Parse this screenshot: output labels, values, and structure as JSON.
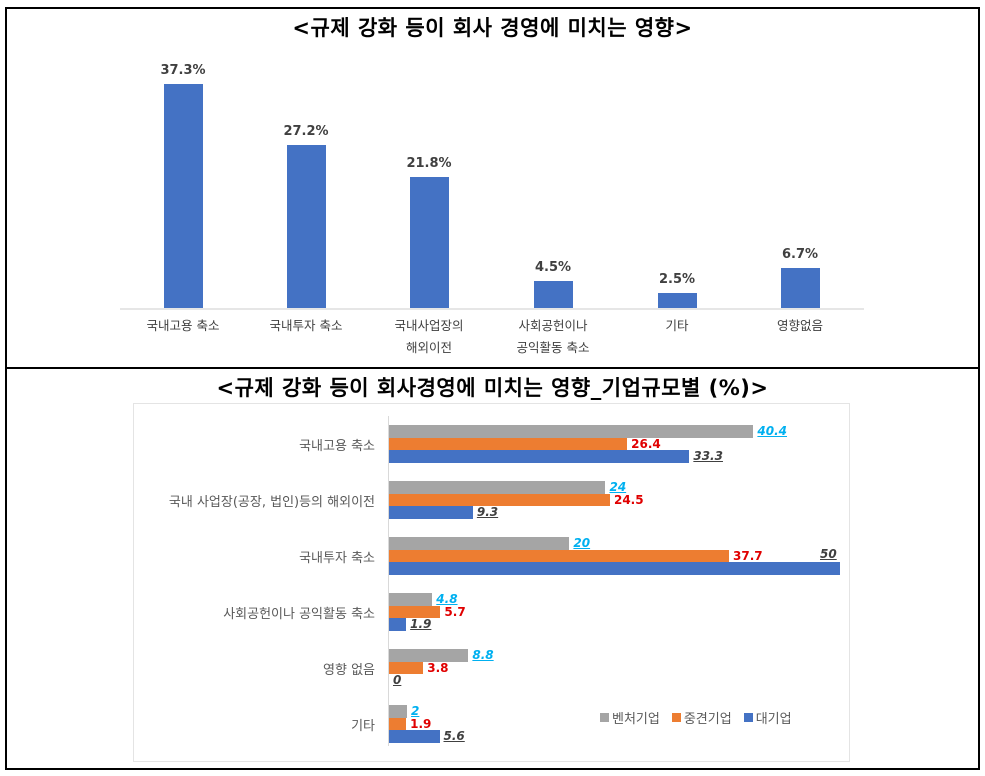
{
  "titles": {
    "top": "<규제 강화 등이 회사 경영에 미치는 영향>",
    "bottom": "<규제 강화 등이 회사경영에 미치는 영향_기업규모별 (%)>"
  },
  "colors": {
    "bar_blue": "#4472c4",
    "venture_gray": "#a5a5a5",
    "midsize_orange": "#ed7d31",
    "large_blue": "#4472c4",
    "venture_label": "#00b0f0",
    "midsize_label": "#e00000",
    "large_label": "#404040"
  },
  "top_chart": {
    "labels": [
      "37.3%",
      "27.2%",
      "21.8%",
      "4.5%",
      "2.5%",
      "6.7%"
    ],
    "categories": [
      [
        "국내고용 축소"
      ],
      [
        "국내투자 축소"
      ],
      [
        "국내사업장의",
        "해외이전"
      ],
      [
        "사회공헌이나",
        "공익활동 축소"
      ],
      [
        "기타"
      ],
      [
        "영향없음"
      ]
    ]
  },
  "bottom_chart": {
    "categories": [
      "국내고용 축소",
      "국내 사업장(공장, 법인)등의 해외이전",
      "국내투자 축소",
      "사회공헌이나 공익활동 축소",
      "영향 없음",
      "기타"
    ],
    "venture_labels": [
      "40.4",
      "24",
      "20",
      "4.8",
      "8.8",
      "2"
    ],
    "midsize_labels": [
      "26.4",
      "24.5",
      "37.7",
      "5.7",
      "3.8",
      "1.9"
    ],
    "large_labels": [
      "33.3",
      "9.3",
      "50",
      "1.9",
      "0",
      "5.6"
    ],
    "legend": [
      "벤처기업",
      "중견기업",
      "대기업"
    ]
  },
  "chart_data": [
    {
      "type": "bar",
      "title": "<규제 강화 등이 회사 경영에 미치는 영향>",
      "categories": [
        "국내고용 축소",
        "국내투자 축소",
        "국내사업장의 해외이전",
        "사회공헌이나 공익활동 축소",
        "기타",
        "영향없음"
      ],
      "values": [
        37.3,
        27.2,
        21.8,
        4.5,
        2.5,
        6.7
      ],
      "unit": "%",
      "xlabel": "",
      "ylabel": "",
      "grid": false,
      "legend": null
    },
    {
      "type": "bar",
      "orientation": "horizontal",
      "title": "<규제 강화 등이 회사경영에 미치는 영향_기업규모별 (%)>",
      "categories": [
        "국내고용 축소",
        "국내 사업장(공장, 법인)등의 해외이전",
        "국내투자 축소",
        "사회공헌이나 공익활동 축소",
        "영향 없음",
        "기타"
      ],
      "series": [
        {
          "name": "벤처기업",
          "color": "#a5a5a5",
          "values": [
            40.4,
            24,
            20,
            4.8,
            8.8,
            2
          ]
        },
        {
          "name": "중견기업",
          "color": "#ed7d31",
          "values": [
            26.4,
            24.5,
            37.7,
            5.7,
            3.8,
            1.9
          ]
        },
        {
          "name": "대기업",
          "color": "#4472c4",
          "values": [
            33.3,
            9.3,
            50,
            1.9,
            0,
            5.6
          ]
        }
      ],
      "xlim": [
        0,
        50
      ],
      "grid": false,
      "legend_position": "bottom-right"
    }
  ]
}
